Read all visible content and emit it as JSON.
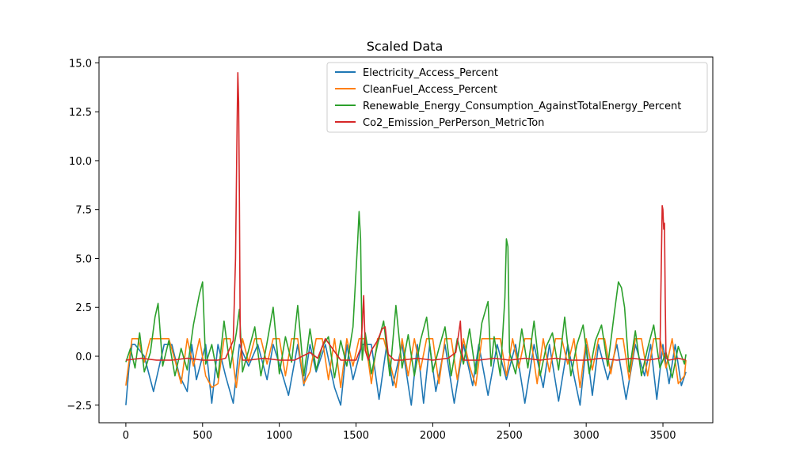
{
  "chart_data": {
    "type": "line",
    "title": "Scaled Data",
    "xlabel": "",
    "ylabel": "",
    "xlim": [
      -175,
      3825
    ],
    "ylim": [
      -3.4,
      15.3
    ],
    "x_ticks": [
      0,
      500,
      1000,
      1500,
      2000,
      2500,
      3000,
      3500
    ],
    "y_ticks": [
      -2.5,
      0.0,
      2.5,
      5.0,
      7.5,
      10.0,
      12.5,
      15.0
    ],
    "x_tick_labels": [
      "0",
      "500",
      "1000",
      "1500",
      "2000",
      "2500",
      "3000",
      "3500"
    ],
    "y_tick_labels": [
      "−2.5",
      "0.0",
      "2.5",
      "5.0",
      "7.5",
      "10.0",
      "12.5",
      "15.0"
    ],
    "grid": false,
    "legend_position": "top-right",
    "series": [
      {
        "name": "Electricity_Access_Percent",
        "color": "#1f77b4",
        "x": [
          0,
          20,
          40,
          60,
          120,
          180,
          250,
          300,
          350,
          400,
          430,
          460,
          520,
          560,
          600,
          650,
          700,
          740,
          800,
          860,
          920,
          960,
          1000,
          1060,
          1120,
          1160,
          1200,
          1240,
          1300,
          1360,
          1400,
          1440,
          1480,
          1540,
          1600,
          1650,
          1700,
          1740,
          1800,
          1860,
          1900,
          1940,
          1980,
          2020,
          2080,
          2140,
          2200,
          2260,
          2300,
          2360,
          2420,
          2480,
          2540,
          2600,
          2660,
          2720,
          2760,
          2820,
          2880,
          2920,
          2960,
          3000,
          3040,
          3080,
          3140,
          3200,
          3260,
          3320,
          3380,
          3420,
          3460,
          3500,
          3540,
          3580,
          3620,
          3650
        ],
        "y": [
          -2.5,
          -0.6,
          0.6,
          0.6,
          0.0,
          -1.8,
          0.6,
          0.6,
          -1.0,
          -1.8,
          0.6,
          -1.2,
          0.6,
          -2.4,
          0.6,
          -1.0,
          -2.4,
          0.6,
          -0.5,
          0.6,
          -1.2,
          0.6,
          -0.4,
          -2.0,
          0.6,
          -1.5,
          0.6,
          -0.8,
          0.6,
          -1.6,
          -2.5,
          0.6,
          -1.2,
          0.6,
          0.6,
          -2.2,
          0.6,
          -1.5,
          0.6,
          -2.5,
          0.6,
          -2.4,
          0.6,
          -1.8,
          0.6,
          -2.4,
          0.6,
          -1.5,
          0.6,
          -2.0,
          0.6,
          -1.2,
          0.6,
          -2.4,
          0.6,
          -1.6,
          0.6,
          -2.3,
          0.6,
          -1.0,
          -2.5,
          0.6,
          -2.0,
          0.6,
          -1.2,
          0.6,
          -2.2,
          0.6,
          -1.0,
          0.6,
          -2.2,
          0.6,
          -1.4,
          0.6,
          -1.5,
          -0.8
        ]
      },
      {
        "name": "CleanFuel_Access_Percent",
        "color": "#ff7f0e",
        "x": [
          0,
          20,
          40,
          80,
          120,
          160,
          200,
          240,
          280,
          320,
          360,
          400,
          440,
          480,
          520,
          560,
          600,
          640,
          680,
          720,
          760,
          800,
          840,
          880,
          920,
          960,
          1000,
          1040,
          1080,
          1120,
          1160,
          1200,
          1240,
          1280,
          1320,
          1360,
          1400,
          1440,
          1480,
          1520,
          1560,
          1600,
          1640,
          1680,
          1720,
          1760,
          1800,
          1840,
          1880,
          1920,
          1960,
          2000,
          2040,
          2080,
          2120,
          2160,
          2200,
          2240,
          2280,
          2320,
          2360,
          2400,
          2440,
          2480,
          2520,
          2560,
          2600,
          2640,
          2680,
          2720,
          2760,
          2800,
          2840,
          2880,
          2920,
          2960,
          3000,
          3040,
          3080,
          3120,
          3160,
          3200,
          3240,
          3280,
          3320,
          3360,
          3400,
          3440,
          3480,
          3520,
          3560,
          3600,
          3640,
          3650
        ],
        "y": [
          -1.5,
          -0.3,
          0.9,
          0.9,
          -0.3,
          0.9,
          0.9,
          0.9,
          0.9,
          -0.2,
          -1.4,
          0.9,
          -0.5,
          0.9,
          -1.0,
          -1.6,
          -1.4,
          0.9,
          0.9,
          -1.6,
          0.9,
          -0.3,
          0.9,
          0.9,
          -0.4,
          0.9,
          0.9,
          -1.0,
          0.9,
          0.9,
          -1.4,
          -0.8,
          0.9,
          0.9,
          -1.2,
          0.9,
          -1.6,
          0.9,
          -0.5,
          0.9,
          0.9,
          -1.4,
          0.9,
          0.9,
          -0.3,
          -1.6,
          0.9,
          -1.0,
          0.9,
          -0.7,
          0.9,
          0.9,
          -1.4,
          0.9,
          0.9,
          -1.2,
          0.9,
          -0.5,
          -1.5,
          0.9,
          0.9,
          0.9,
          0.9,
          -1.0,
          0.9,
          -0.6,
          0.9,
          0.9,
          -1.4,
          0.9,
          -0.8,
          0.9,
          0.9,
          -0.4,
          0.9,
          -1.6,
          0.9,
          -0.7,
          0.9,
          0.9,
          -0.9,
          0.9,
          0.9,
          -1.2,
          0.9,
          0.9,
          -1.0,
          0.9,
          0.9,
          -0.6,
          0.9,
          -1.4,
          -1.0,
          -0.2
        ]
      },
      {
        "name": "Renewable_Energy_Consumption_AgainstTotalEnergy_Percent",
        "color": "#2ca02c",
        "x": [
          0,
          30,
          60,
          90,
          120,
          160,
          190,
          210,
          240,
          280,
          320,
          360,
          400,
          440,
          480,
          500,
          520,
          560,
          600,
          640,
          680,
          720,
          740,
          760,
          800,
          840,
          880,
          920,
          960,
          1000,
          1040,
          1080,
          1120,
          1160,
          1200,
          1240,
          1280,
          1320,
          1360,
          1400,
          1440,
          1480,
          1510,
          1520,
          1530,
          1540,
          1560,
          1600,
          1640,
          1680,
          1720,
          1760,
          1800,
          1840,
          1880,
          1920,
          1960,
          2000,
          2040,
          2080,
          2120,
          2160,
          2200,
          2240,
          2280,
          2320,
          2360,
          2380,
          2400,
          2440,
          2470,
          2480,
          2490,
          2500,
          2540,
          2580,
          2620,
          2660,
          2700,
          2740,
          2780,
          2820,
          2860,
          2900,
          2940,
          2980,
          3020,
          3060,
          3100,
          3140,
          3180,
          3210,
          3230,
          3250,
          3280,
          3320,
          3360,
          3400,
          3440,
          3480,
          3520,
          3560,
          3600,
          3640,
          3650
        ],
        "y": [
          -0.3,
          0.4,
          -0.6,
          1.2,
          -0.8,
          0.2,
          2.0,
          2.7,
          -0.5,
          0.8,
          -1.0,
          0.4,
          -0.7,
          1.6,
          3.2,
          3.8,
          -0.4,
          0.6,
          -1.1,
          1.8,
          -0.6,
          1.2,
          2.4,
          -0.8,
          0.3,
          1.5,
          -1.0,
          0.7,
          2.5,
          -0.9,
          1.0,
          -0.3,
          2.6,
          -1.0,
          1.4,
          -0.7,
          0.5,
          1.0,
          -1.1,
          0.8,
          -0.5,
          1.5,
          5.8,
          7.4,
          6.0,
          -0.2,
          1.2,
          -0.9,
          0.6,
          1.8,
          -1.0,
          2.6,
          -0.6,
          1.1,
          -1.0,
          0.8,
          2.0,
          -0.8,
          0.4,
          1.5,
          -1.0,
          0.9,
          -0.4,
          1.4,
          -0.9,
          1.7,
          2.8,
          -0.5,
          1.0,
          -1.0,
          3.0,
          6.0,
          5.6,
          0.2,
          -0.9,
          1.4,
          -0.6,
          1.8,
          -1.0,
          0.5,
          1.2,
          -0.7,
          2.0,
          -1.0,
          0.6,
          1.6,
          -0.9,
          0.8,
          1.6,
          -0.5,
          2.0,
          3.8,
          3.5,
          2.5,
          -0.8,
          1.3,
          -1.0,
          0.4,
          1.6,
          -0.6,
          0.2,
          -1.1,
          0.5,
          -0.4,
          0.1
        ]
      },
      {
        "name": "Co2_Emission_PerPerson_MetricTon",
        "color": "#d62728",
        "x": [
          0,
          100,
          200,
          300,
          400,
          500,
          600,
          650,
          700,
          715,
          725,
          730,
          735,
          740,
          745,
          760,
          800,
          900,
          1000,
          1100,
          1200,
          1250,
          1300,
          1400,
          1500,
          1530,
          1540,
          1550,
          1560,
          1580,
          1600,
          1640,
          1670,
          1690,
          1710,
          1750,
          1800,
          1900,
          2000,
          2100,
          2150,
          2170,
          2180,
          2190,
          2200,
          2300,
          2400,
          2500,
          2600,
          2700,
          2800,
          2900,
          3000,
          3100,
          3200,
          3300,
          3400,
          3480,
          3495,
          3500,
          3505,
          3510,
          3515,
          3520,
          3540,
          3600,
          3650
        ],
        "y": [
          -0.2,
          -0.1,
          -0.2,
          -0.2,
          -0.1,
          -0.2,
          -0.2,
          -0.1,
          0.8,
          5.0,
          12.0,
          14.5,
          13.0,
          8.0,
          1.0,
          -0.2,
          -0.2,
          -0.1,
          -0.2,
          -0.2,
          0.2,
          -0.1,
          0.9,
          -0.2,
          -0.2,
          0.4,
          1.5,
          3.1,
          0.3,
          -0.2,
          0.3,
          0.8,
          1.4,
          1.5,
          0.1,
          -0.2,
          -0.2,
          -0.1,
          -0.2,
          -0.1,
          0.2,
          1.2,
          1.8,
          0.2,
          -0.2,
          -0.2,
          -0.1,
          -0.2,
          -0.1,
          -0.2,
          -0.1,
          -0.2,
          -0.2,
          -0.1,
          -0.2,
          -0.1,
          -0.2,
          -0.1,
          7.7,
          7.5,
          6.5,
          6.8,
          3.0,
          -0.1,
          -0.2,
          -0.1,
          -0.2
        ]
      }
    ]
  }
}
